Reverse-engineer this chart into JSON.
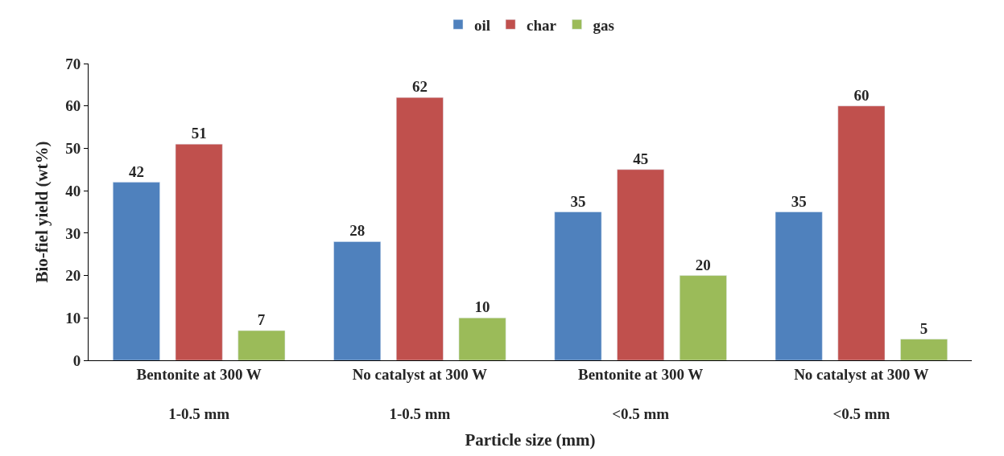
{
  "chart_data": {
    "type": "bar",
    "xlabel": "Particle size (mm)",
    "ylabel": "Bio-fiel yield (wt%)",
    "categories": [
      "Bentonite at 300 W\n1-0.5 mm",
      "No catalyst at 300 W\n1-0.5 mm",
      "Bentonite at 300 W\n<0.5 mm",
      "No catalyst at 300 W\n<0.5 mm"
    ],
    "series": [
      {
        "name": "oil",
        "color": "#4f81bd",
        "values": [
          42,
          28,
          35,
          35
        ]
      },
      {
        "name": "char",
        "color": "#c0504d",
        "values": [
          51,
          62,
          45,
          60
        ]
      },
      {
        "name": "gas",
        "color": "#9bbb59",
        "values": [
          7,
          10,
          20,
          5
        ]
      }
    ],
    "ylim": [
      0,
      70
    ],
    "yticks": [
      0,
      10,
      20,
      30,
      40,
      50,
      60,
      70
    ],
    "legend": "top",
    "data_labels": true
  }
}
